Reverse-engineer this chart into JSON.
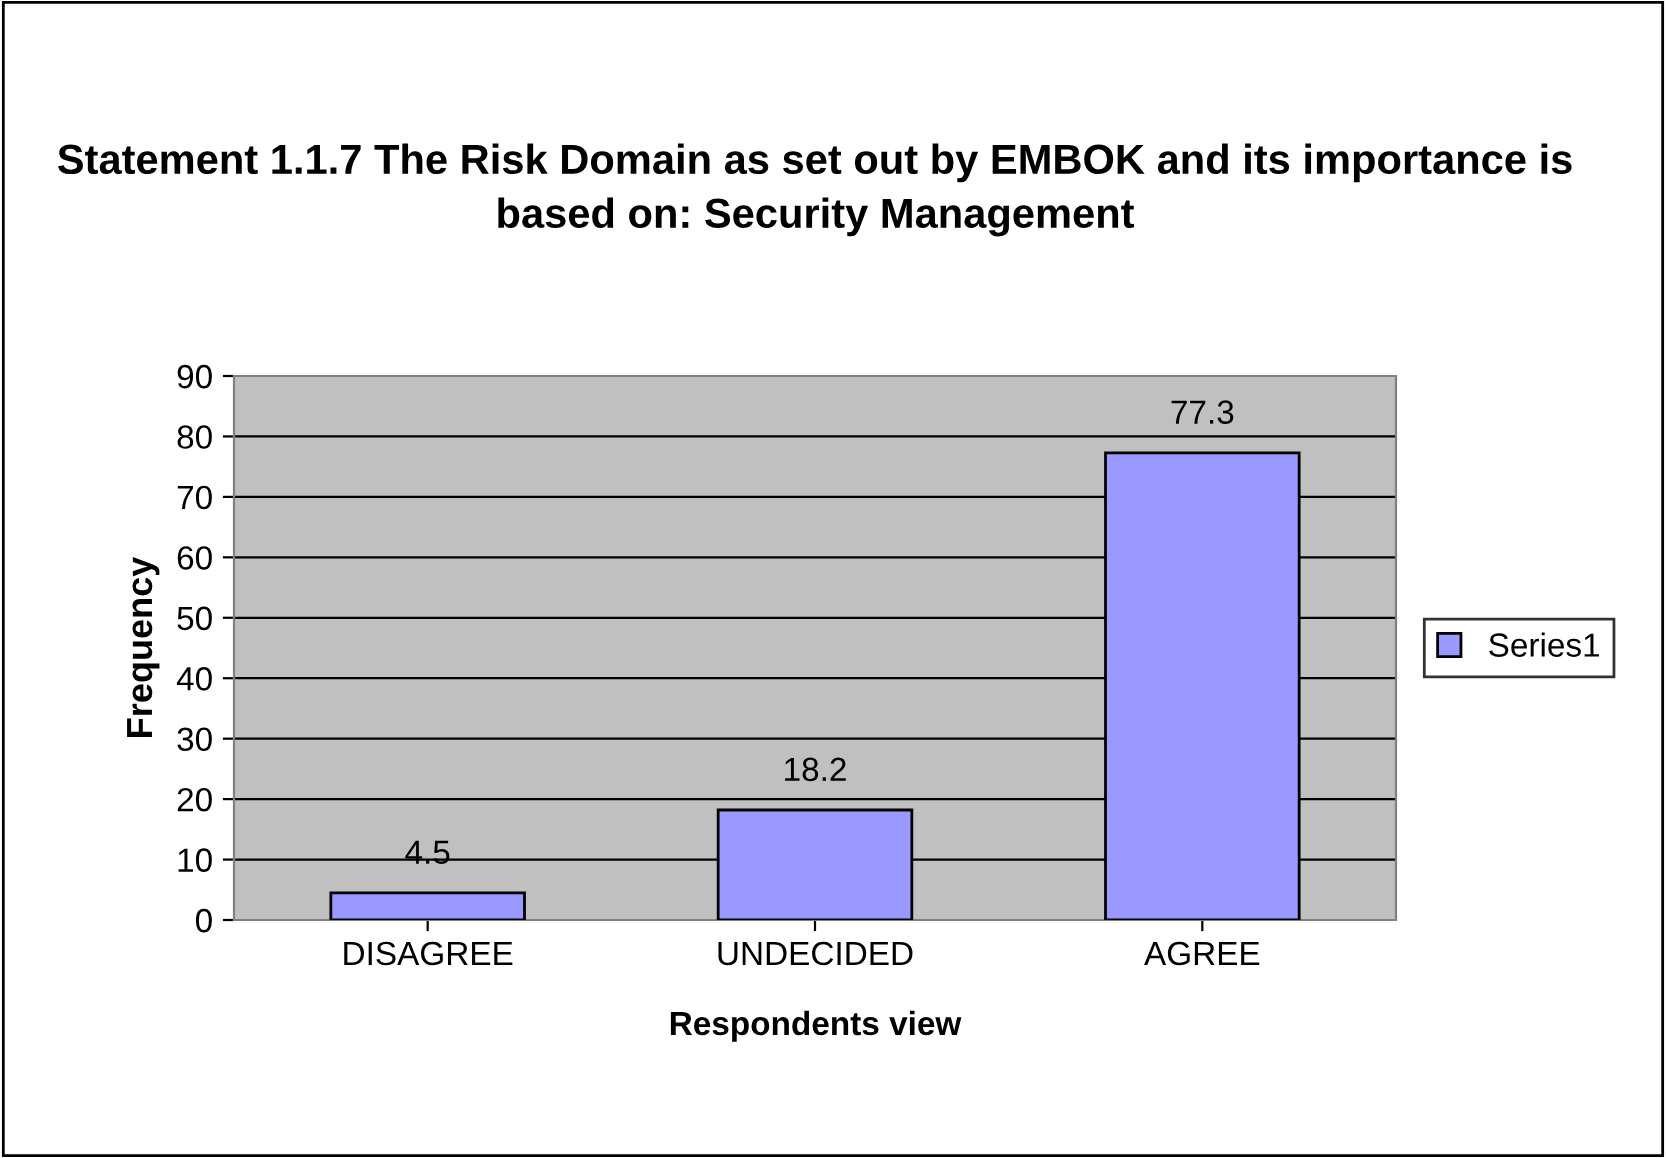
{
  "chart_data": {
    "type": "bar",
    "title": "Statement 1.1.7 The Risk Domain as set out by EMBOK and its importance is based on: Security Management",
    "xlabel": "Respondents view",
    "ylabel": "Frequency",
    "categories": [
      "DISAGREE",
      "UNDECIDED",
      "AGREE"
    ],
    "series": [
      {
        "name": "Series1",
        "color": "#9999ff",
        "values": [
          4.5,
          18.2,
          77.3
        ]
      }
    ],
    "ylim": [
      0,
      90
    ],
    "yticks": [
      0,
      10,
      20,
      30,
      40,
      50,
      60,
      70,
      80,
      90
    ],
    "grid": "y",
    "legend": "right",
    "data_labels": true
  }
}
